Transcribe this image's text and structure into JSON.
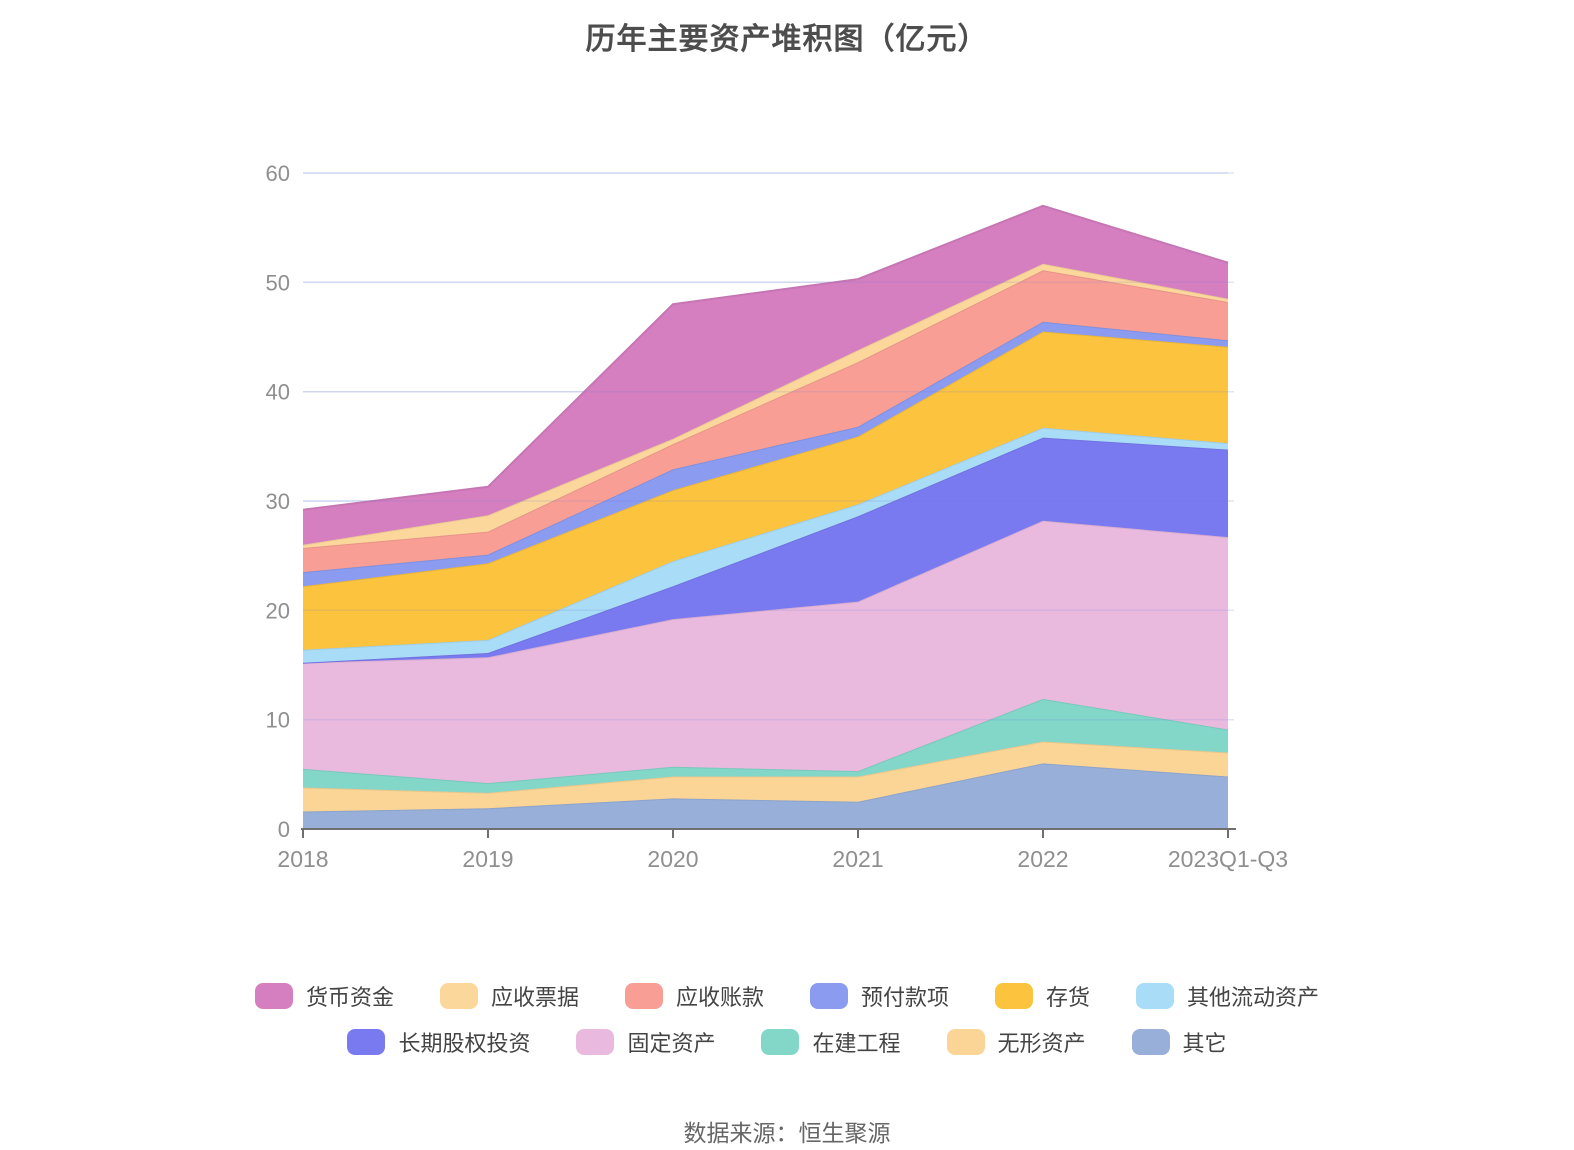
{
  "header": {
    "title": "历年主要资产堆积图（亿元）"
  },
  "footer": {
    "source": "数据来源：恒生聚源"
  },
  "style_colors": {
    "title_text": "#4d4d4d",
    "axis_label_text": "#8f8f8f",
    "legend_text": "#444444",
    "source_text": "#666666",
    "gridline": "#e2e5f4",
    "gridline_overlay": "rgba(110,120,220,0.15)",
    "axis_line": "#6f6f6f"
  },
  "chart_data": {
    "type": "area",
    "stacked": true,
    "title": "历年主要资产堆积图（亿元）",
    "xlabel": "",
    "ylabel": "",
    "categories": [
      "2018",
      "2019",
      "2020",
      "2021",
      "2022",
      "2023Q1-Q3"
    ],
    "ylim": [
      0,
      60
    ],
    "yticks": [
      0,
      10,
      20,
      30,
      40,
      50,
      60
    ],
    "grid": true,
    "legend_position": "bottom",
    "series_bottom_to_top": [
      {
        "name": "其它",
        "color": "#97afd9",
        "values": [
          1.6,
          1.9,
          2.8,
          2.5,
          6.0,
          4.8
        ]
      },
      {
        "name": "无形资产",
        "color": "#fbd596",
        "values": [
          2.2,
          1.4,
          2.0,
          2.3,
          2.0,
          2.2
        ]
      },
      {
        "name": "在建工程",
        "color": "#82d7c9",
        "values": [
          1.7,
          0.9,
          0.9,
          0.5,
          3.9,
          2.1
        ]
      },
      {
        "name": "固定资产",
        "color": "#e9bade",
        "values": [
          9.7,
          11.5,
          13.5,
          15.5,
          16.3,
          17.6
        ]
      },
      {
        "name": "长期股权投资",
        "color": "#797af0",
        "values": [
          0.0,
          0.4,
          3.0,
          7.8,
          7.6,
          8.0
        ]
      },
      {
        "name": "其他流动资产",
        "color": "#a9dcf6",
        "values": [
          1.2,
          1.2,
          2.3,
          1.1,
          0.9,
          0.6
        ]
      },
      {
        "name": "存货",
        "color": "#fcc33e",
        "values": [
          5.8,
          7.0,
          6.5,
          6.2,
          8.8,
          8.8
        ]
      },
      {
        "name": "预付款项",
        "color": "#8a9bf0",
        "values": [
          1.3,
          0.8,
          1.9,
          0.9,
          0.9,
          0.6
        ]
      },
      {
        "name": "应收账款",
        "color": "#f89e94",
        "values": [
          2.2,
          2.1,
          2.3,
          5.9,
          4.7,
          3.5
        ]
      },
      {
        "name": "应收票据",
        "color": "#fbd79c",
        "values": [
          0.3,
          1.5,
          0.5,
          1.1,
          0.6,
          0.3
        ]
      },
      {
        "name": "货币资金",
        "color": "#d57fc0",
        "values": [
          3.2,
          2.6,
          12.3,
          6.5,
          5.3,
          3.3
        ]
      }
    ],
    "totals_by_category": [
      29.2,
      31.3,
      48.0,
      50.3,
      57.0,
      51.8
    ],
    "legend_rows": [
      [
        "货币资金",
        "应收票据",
        "应收账款",
        "预付款项",
        "存货",
        "其他流动资产"
      ],
      [
        "长期股权投资",
        "固定资产",
        "在建工程",
        "无形资产",
        "其它"
      ]
    ]
  }
}
